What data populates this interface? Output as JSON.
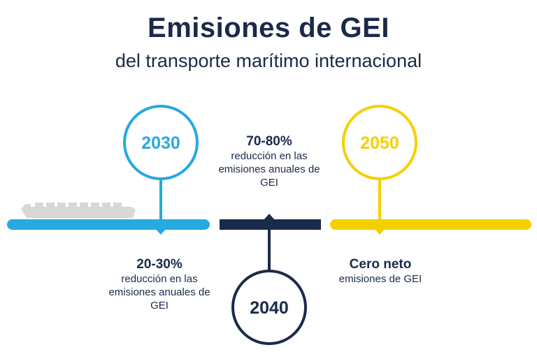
{
  "title": "Emisiones de GEI",
  "subtitle": "del transporte marítimo internacional",
  "colors": {
    "navy": "#1b2a4a",
    "blue": "#27a9e1",
    "yellow": "#f5d000",
    "ship": "#d8d8d8"
  },
  "milestones": [
    {
      "year": "2030",
      "value": "20-30%",
      "description": "reducción en las emisiones anuales de GEI",
      "color": "blue"
    },
    {
      "year": "2040",
      "value": "70-80%",
      "description": "reducción en las emisiones anuales de GEI",
      "color": "navy"
    },
    {
      "year": "2050",
      "value": "Cero neto",
      "description": "emisiones de GEI",
      "color": "yellow"
    }
  ],
  "icons": {
    "ship": "cargo-ship-icon"
  }
}
